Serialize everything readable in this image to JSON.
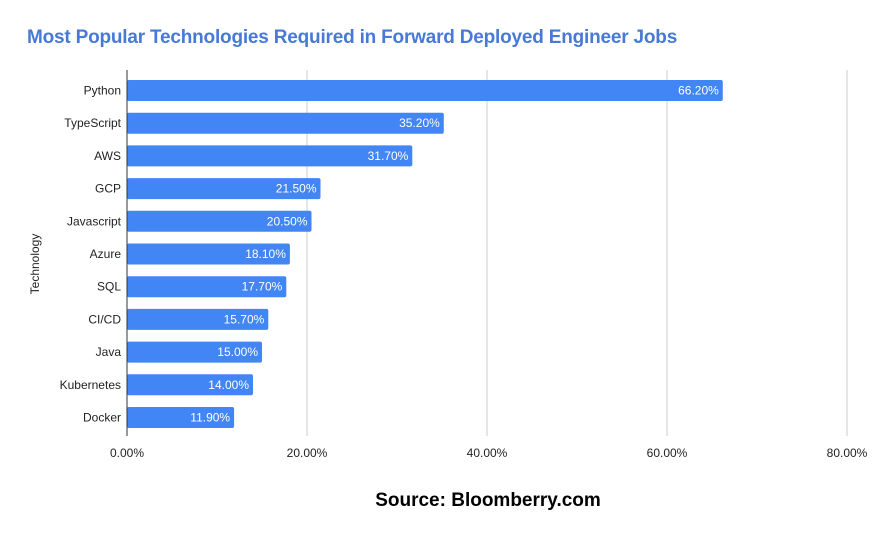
{
  "chart_data": {
    "type": "bar",
    "orientation": "horizontal",
    "title": "Most Popular Technologies Required in Forward Deployed Engineer Jobs",
    "xlabel": "",
    "ylabel": "Technology",
    "categories": [
      "Python",
      "TypeScript",
      "AWS",
      "GCP",
      "Javascript",
      "Azure",
      "SQL",
      "CI/CD",
      "Java",
      "Kubernetes",
      "Docker"
    ],
    "values": [
      66.2,
      35.2,
      31.7,
      21.5,
      20.5,
      18.1,
      17.7,
      15.7,
      15.0,
      14.0,
      11.9
    ],
    "data_labels": [
      "66.20%",
      "35.20%",
      "31.70%",
      "21.50%",
      "20.50%",
      "18.10%",
      "17.70%",
      "15.70%",
      "15.00%",
      "14.00%",
      "11.90%"
    ],
    "xlim": [
      0,
      80
    ],
    "xticks": [
      0,
      20,
      40,
      60,
      80
    ],
    "xtick_labels": [
      "0.00%",
      "20.00%",
      "40.00%",
      "60.00%",
      "80.00%"
    ],
    "grid": true,
    "legend": "none",
    "bar_color": "#4285f4",
    "title_color": "#4879d6",
    "annotation": "Source: Bloomberry.com"
  }
}
